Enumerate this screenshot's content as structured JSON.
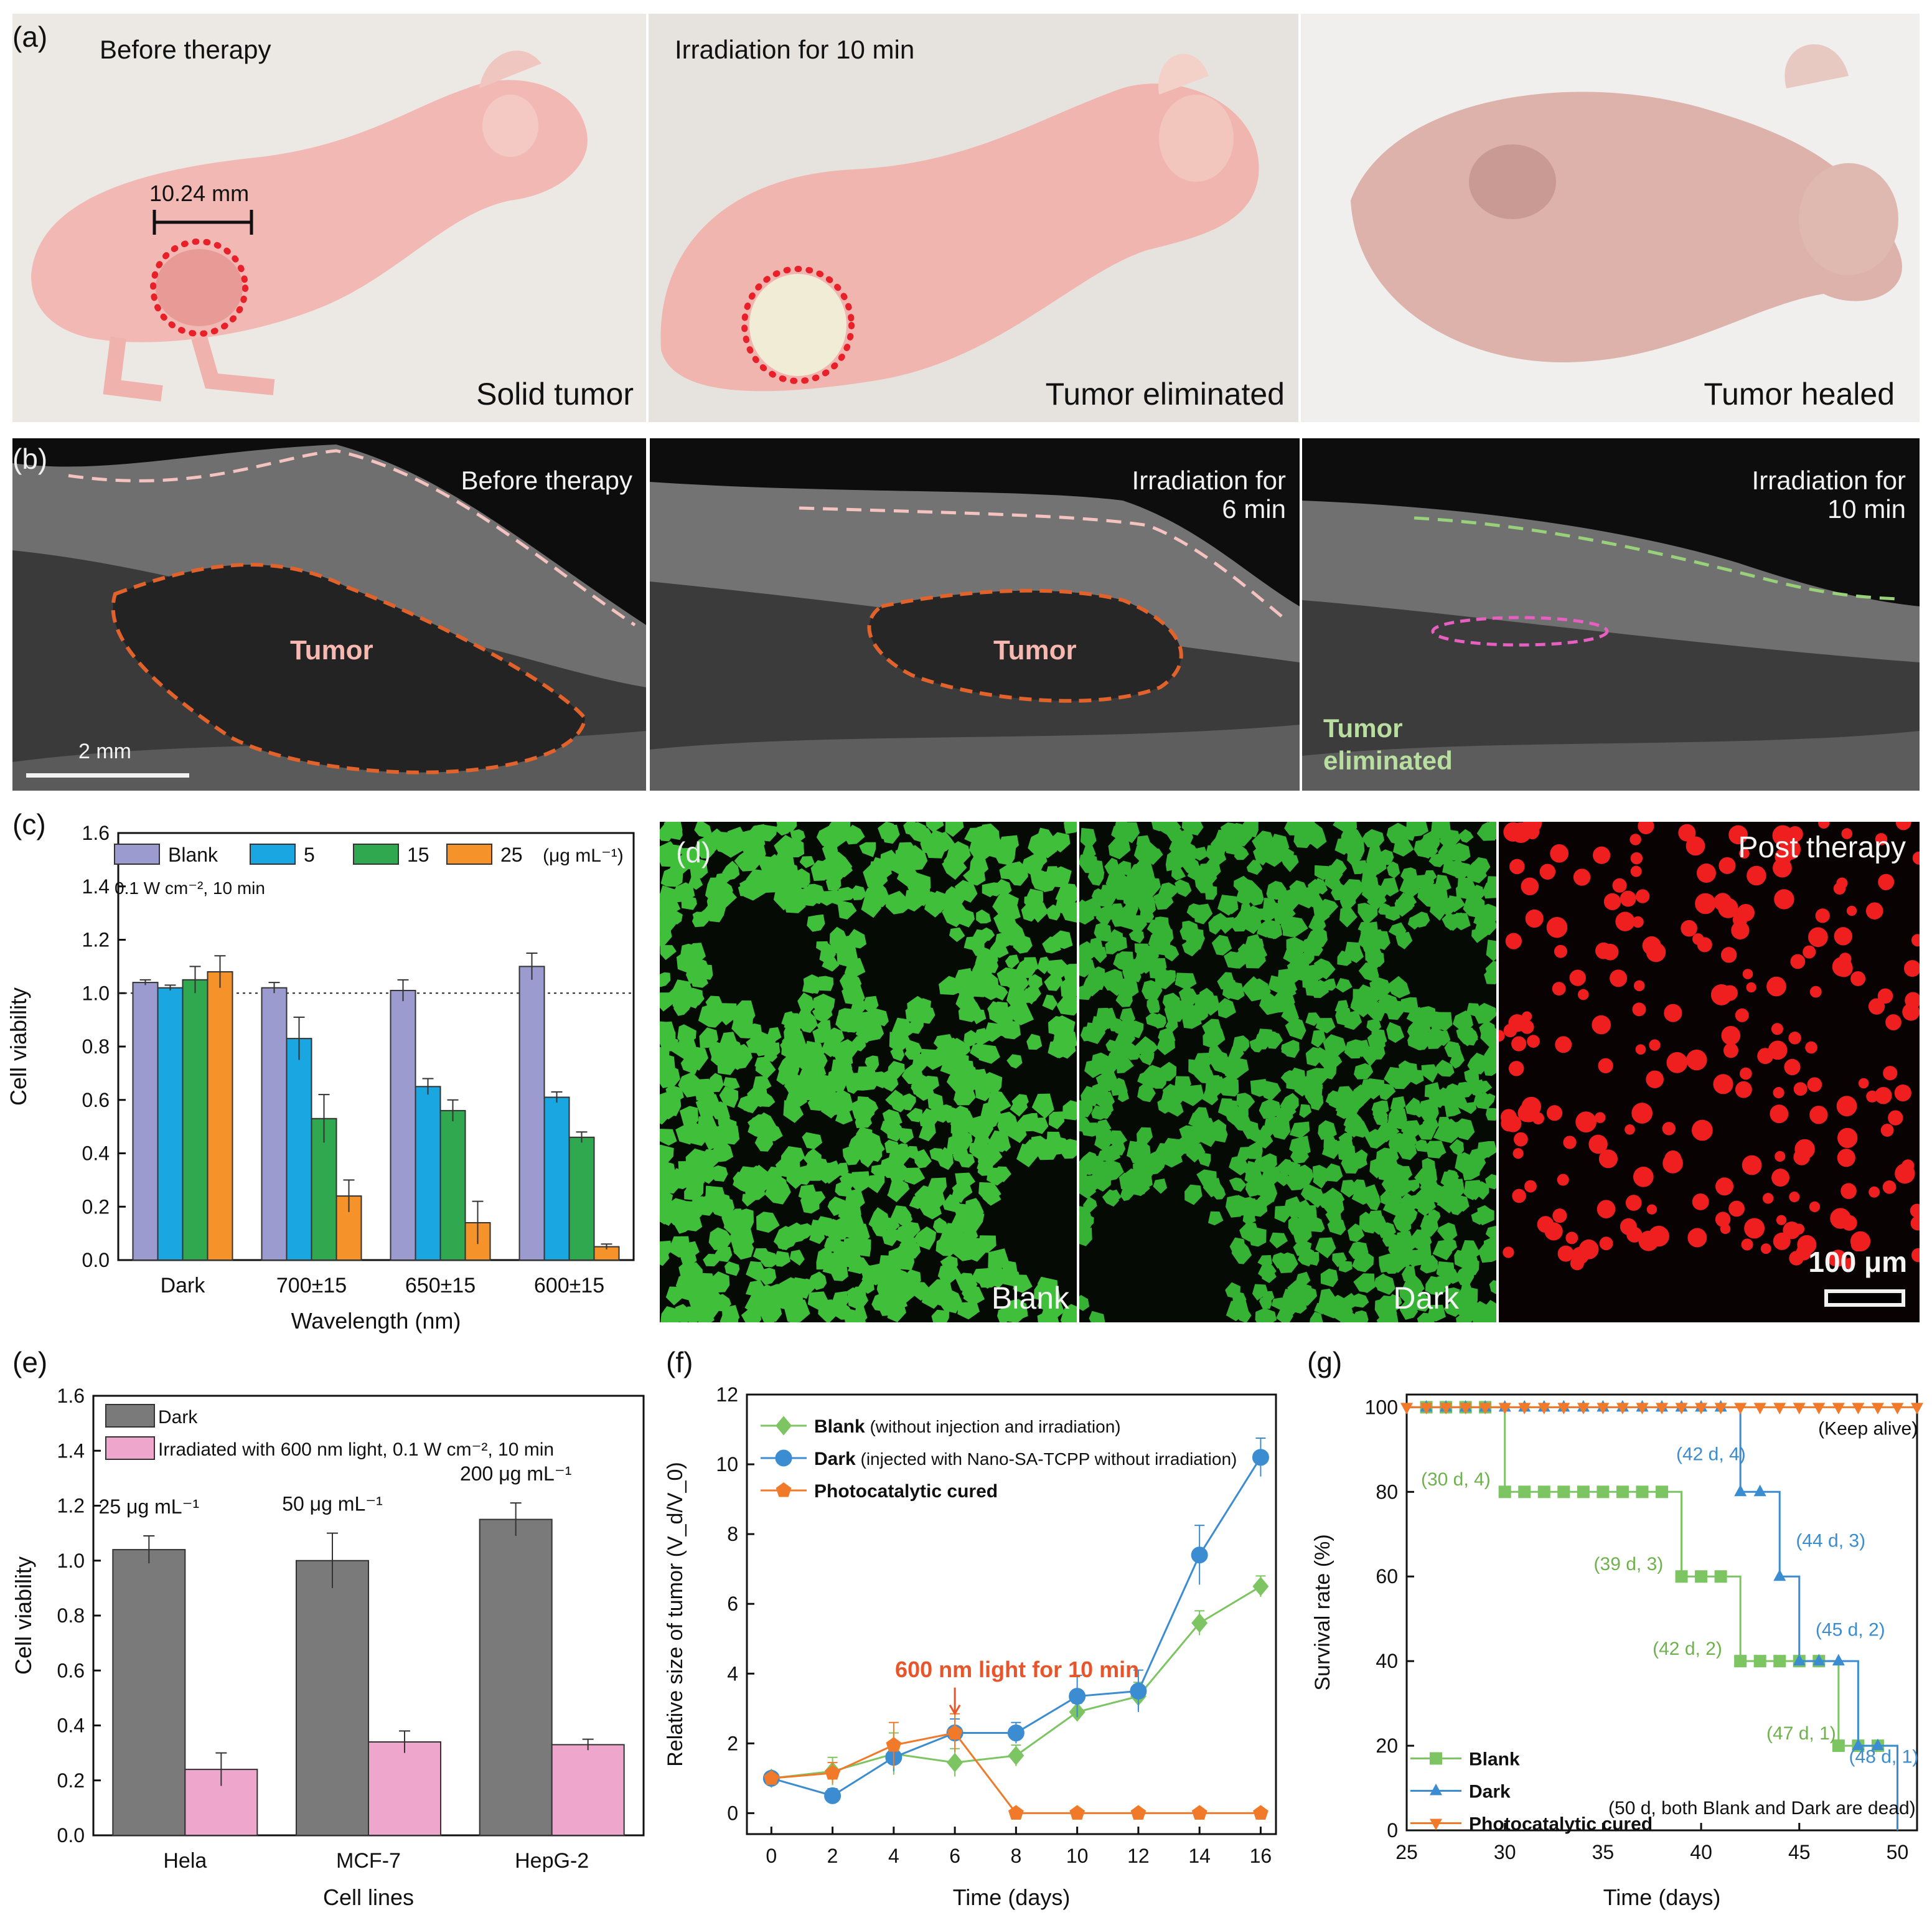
{
  "panel_a": {
    "label": "(a)",
    "subpanels": [
      {
        "title": "Before therapy",
        "caption": "Solid tumor",
        "scale": "10.24 mm"
      },
      {
        "title": "Irradiation for 10 min",
        "caption": "Tumor eliminated"
      },
      {
        "title": "",
        "caption": "Tumor healed"
      }
    ]
  },
  "panel_b": {
    "label": "(b)",
    "subpanels": [
      {
        "title_line1": "Before therapy",
        "title_line2": "",
        "tumor_label": "Tumor",
        "scale_bar": "2 mm"
      },
      {
        "title_line1": "Irradiation for",
        "title_line2": "6 min",
        "tumor_label": "Tumor"
      },
      {
        "title_line1": "Irradiation for",
        "title_line2": "10 min",
        "tumor_label_line1": "Tumor",
        "tumor_label_line2": "eliminated"
      }
    ]
  },
  "panel_d": {
    "label": "(d)",
    "subpanels": [
      {
        "caption": "Blank"
      },
      {
        "caption": "Dark"
      },
      {
        "caption": "Post therapy",
        "scale_bar": "100 μm"
      }
    ]
  },
  "chart_data": [
    {
      "id": "c",
      "panel_label": "(c)",
      "type": "bar",
      "title": "",
      "xlabel": "Wavelength (nm)",
      "ylabel": "Cell viability",
      "ylim": [
        0,
        1.6
      ],
      "yticks": [
        "0.0",
        "0.2",
        "0.4",
        "0.6",
        "0.8",
        "1.0",
        "1.2",
        "1.4",
        "1.6"
      ],
      "categories": [
        "Dark",
        "700±15",
        "650±15",
        "600±15"
      ],
      "legend_unit": "(μg mL⁻¹)",
      "annotation": "0.1 W cm⁻², 10 min",
      "reference_line": 1.0,
      "series": [
        {
          "name": "Blank",
          "color": "#9b9bd0",
          "values": [
            1.04,
            1.02,
            1.01,
            1.1
          ],
          "errors": [
            0.01,
            0.02,
            0.04,
            0.05
          ]
        },
        {
          "name": "5",
          "color": "#1aa6e0",
          "values": [
            1.02,
            0.83,
            0.65,
            0.61
          ],
          "errors": [
            0.01,
            0.08,
            0.03,
            0.02
          ]
        },
        {
          "name": "15",
          "color": "#2fa84f",
          "values": [
            1.05,
            0.53,
            0.56,
            0.46
          ],
          "errors": [
            0.05,
            0.09,
            0.04,
            0.02
          ]
        },
        {
          "name": "25",
          "color": "#f5922a",
          "values": [
            1.08,
            0.24,
            0.14,
            0.05
          ],
          "errors": [
            0.06,
            0.06,
            0.08,
            0.01
          ]
        }
      ]
    },
    {
      "id": "e",
      "panel_label": "(e)",
      "type": "bar",
      "title": "",
      "xlabel": "Cell lines",
      "ylabel": "Cell viability",
      "ylim": [
        0,
        1.6
      ],
      "yticks": [
        "0.0",
        "0.2",
        "0.4",
        "0.6",
        "0.8",
        "1.0",
        "1.2",
        "1.4",
        "1.6"
      ],
      "categories": [
        "Hela",
        "MCF-7",
        "HepG-2"
      ],
      "concentrations": [
        "25 μg mL⁻¹",
        "50 μg mL⁻¹",
        "200 μg mL⁻¹"
      ],
      "series": [
        {
          "name": "Dark",
          "color": "#7a7a7a",
          "values": [
            1.04,
            1.0,
            1.15
          ],
          "errors": [
            0.05,
            0.1,
            0.06
          ]
        },
        {
          "name": "Irradiated with 600 nm light, 0.1 W cm⁻², 10 min",
          "color": "#efa6cd",
          "values": [
            0.24,
            0.34,
            0.33
          ],
          "errors": [
            0.06,
            0.04,
            0.02
          ]
        }
      ]
    },
    {
      "id": "f",
      "panel_label": "(f)",
      "type": "line",
      "title": "",
      "xlabel": "Time (days)",
      "ylabel": "Relative size of tumor (V_d/V_0)",
      "xlim": [
        -0.8,
        16.5
      ],
      "ylim": [
        -0.6,
        12
      ],
      "xticks": [
        "0",
        "2",
        "4",
        "6",
        "8",
        "10",
        "12",
        "14",
        "16"
      ],
      "yticks": [
        "0",
        "2",
        "4",
        "6",
        "8",
        "10",
        "12"
      ],
      "annotation": "600 nm light for 10 min",
      "series": [
        {
          "name": "Blank",
          "name_note": "(without injection and irradiation)",
          "color": "#7dc462",
          "marker": "diamond",
          "x": [
            0,
            2,
            4,
            6,
            8,
            10,
            12,
            14,
            16
          ],
          "y": [
            1.0,
            1.2,
            1.7,
            1.45,
            1.65,
            2.9,
            3.35,
            5.45,
            6.5
          ],
          "errors": [
            0.05,
            0.4,
            0.6,
            0.4,
            0.3,
            0.25,
            0.4,
            0.35,
            0.3
          ]
        },
        {
          "name": "Dark",
          "name_note": "(injected with Nano-SA-TCPP without irradiation)",
          "color": "#3b8cd0",
          "marker": "circle",
          "x": [
            0,
            2,
            4,
            6,
            8,
            10,
            12,
            14,
            16
          ],
          "y": [
            1.0,
            0.5,
            1.6,
            2.3,
            2.3,
            3.35,
            3.5,
            7.4,
            10.2
          ],
          "errors": [
            0.05,
            0.2,
            0.4,
            0.4,
            0.3,
            0.6,
            0.6,
            0.85,
            0.55
          ]
        },
        {
          "name": "Photocatalytic cured",
          "name_note": "",
          "color": "#f07a2a",
          "marker": "pentagon",
          "x": [
            0,
            2,
            4,
            6,
            8,
            10,
            12,
            14,
            16
          ],
          "y": [
            1.0,
            1.15,
            1.95,
            2.3,
            0.0,
            0.0,
            0.0,
            0.0,
            0.0
          ],
          "errors": [
            0.05,
            0.3,
            0.65,
            0.55,
            0,
            0,
            0,
            0,
            0
          ]
        }
      ]
    },
    {
      "id": "g",
      "panel_label": "(g)",
      "type": "line",
      "subtype": "survival-step",
      "title": "",
      "xlabel": "Time (days)",
      "ylabel": "Survival rate (%)",
      "xlim": [
        25,
        51
      ],
      "ylim": [
        0,
        103
      ],
      "xticks": [
        "25",
        "30",
        "35",
        "40",
        "45",
        "50"
      ],
      "yticks": [
        "0",
        "20",
        "40",
        "60",
        "80",
        "100"
      ],
      "series": [
        {
          "name": "Blank",
          "color": "#7dc462",
          "marker": "square",
          "steps": [
            [
              25,
              100
            ],
            [
              30,
              80
            ],
            [
              39,
              60
            ],
            [
              42,
              40
            ],
            [
              47,
              20
            ],
            [
              50,
              0
            ]
          ],
          "markers_x_start": 26
        },
        {
          "name": "Dark",
          "color": "#3b8cd0",
          "marker": "triangle-up",
          "steps": [
            [
              25,
              100
            ],
            [
              42,
              80
            ],
            [
              44,
              60
            ],
            [
              45,
              40
            ],
            [
              48,
              20
            ],
            [
              50,
              0
            ]
          ],
          "markers_x_start": 26
        },
        {
          "name": "Photocatalytic cured",
          "color": "#f07a2a",
          "marker": "triangle-down",
          "steps": [
            [
              25,
              100
            ],
            [
              51,
              100
            ]
          ],
          "markers_x_start": 25
        }
      ],
      "annotations": [
        {
          "text": "(Keep alive)",
          "x": 48.5,
          "y": 93.5,
          "color": "#111111"
        },
        {
          "text": "(30 d, 4)",
          "x": 27.5,
          "y": 81.5,
          "color": "#6fb24d"
        },
        {
          "text": "(42 d, 4)",
          "x": 40.5,
          "y": 87.5,
          "color": "#3b8cd0"
        },
        {
          "text": "(39 d, 3)",
          "x": 36.3,
          "y": 61.5,
          "color": "#6fb24d"
        },
        {
          "text": "(44 d, 3)",
          "x": 46.6,
          "y": 67,
          "color": "#3b8cd0"
        },
        {
          "text": "(45 d, 2)",
          "x": 47.6,
          "y": 46,
          "color": "#3b8cd0"
        },
        {
          "text": "(42 d, 2)",
          "x": 39.3,
          "y": 41.5,
          "color": "#6fb24d"
        },
        {
          "text": "(47 d, 1)",
          "x": 45.1,
          "y": 21.5,
          "color": "#6fb24d"
        },
        {
          "text": "(48 d, 1)",
          "x": 49.3,
          "y": 16,
          "color": "#3b8cd0"
        },
        {
          "text": "(50 d, both Blank and Dark are dead)",
          "x": 43.1,
          "y": 3.8,
          "color": "#111111"
        }
      ]
    }
  ]
}
